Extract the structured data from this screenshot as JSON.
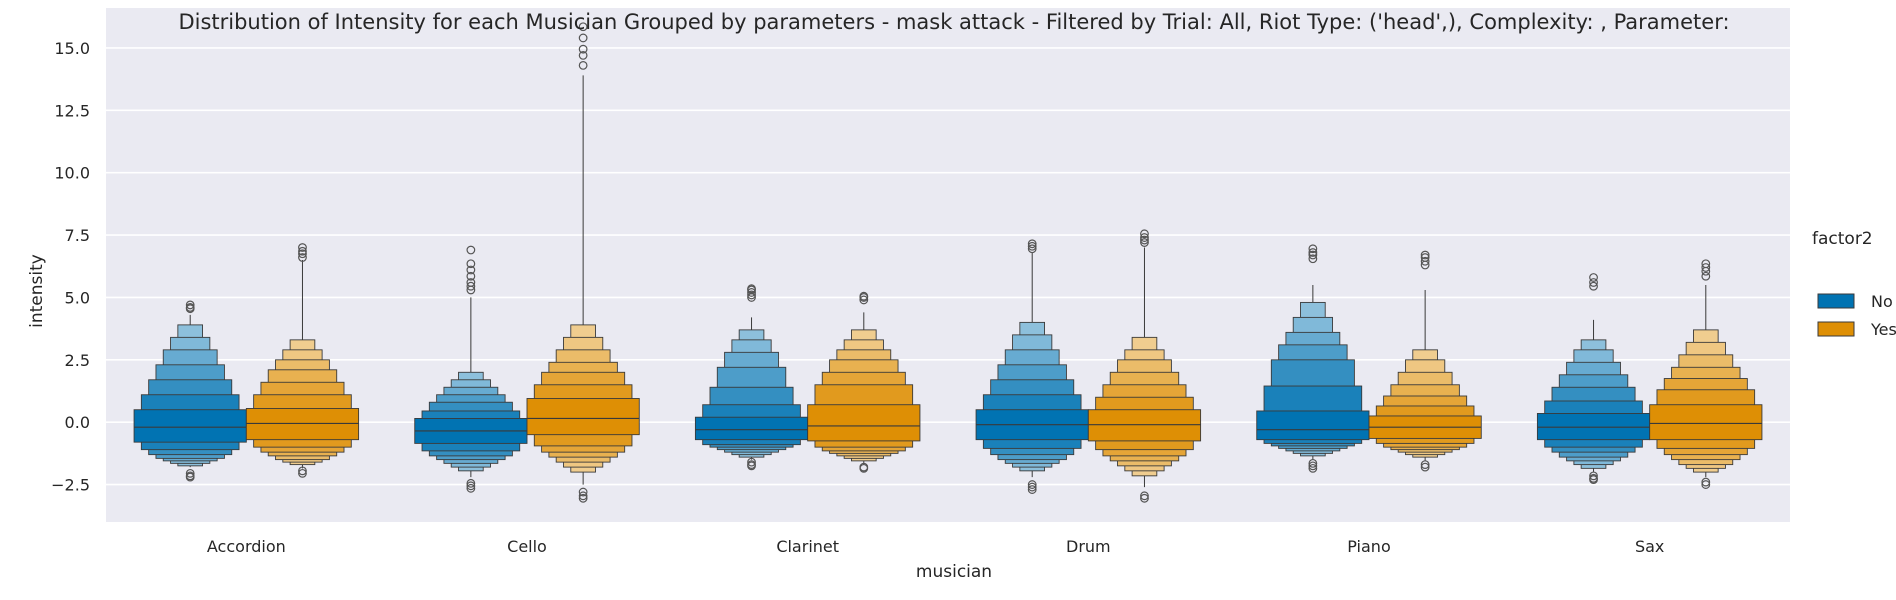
{
  "chart_data": {
    "type": "boxen",
    "title": "Distribution of Intensity for each Musician Grouped by parameters - mask attack - Filtered by Trial: All, Riot Type: ('head',), Complexity: , Parameter:",
    "xlabel": "musician",
    "ylabel": "intensity",
    "ylim": [
      -4.0,
      16.6
    ],
    "yticks": [
      -2.5,
      0.0,
      2.5,
      5.0,
      7.5,
      10.0,
      12.5,
      15.0
    ],
    "ytick_labels": [
      "−2.5",
      "0.0",
      "2.5",
      "5.0",
      "7.5",
      "10.0",
      "12.5",
      "15.0"
    ],
    "grid": true,
    "background": "#eaeaf2",
    "legend": {
      "title": "factor2",
      "placement": "right",
      "entries": [
        {
          "label": "No",
          "color": "#0173b2"
        },
        {
          "label": "Yes",
          "color": "#de8f05"
        }
      ]
    },
    "categories": [
      "Accordion",
      "Cello",
      "Clarinet",
      "Drum",
      "Piano",
      "Sax"
    ],
    "series": [
      {
        "name": "No",
        "color": "#0173b2",
        "groups": [
          {
            "median": -0.2,
            "levels": [
              [
                -0.8,
                0.5
              ],
              [
                -1.1,
                1.1
              ],
              [
                -1.3,
                1.7
              ],
              [
                -1.45,
                2.3
              ],
              [
                -1.55,
                2.9
              ],
              [
                -1.65,
                3.4
              ],
              [
                -1.75,
                3.9
              ]
            ],
            "whisker": [
              -1.8,
              4.3
            ],
            "outliers": [
              -2.05,
              -2.15,
              -2.2,
              4.55,
              4.6,
              4.7
            ]
          },
          {
            "median": -0.35,
            "levels": [
              [
                -0.85,
                0.15
              ],
              [
                -1.15,
                0.45
              ],
              [
                -1.35,
                0.8
              ],
              [
                -1.5,
                1.1
              ],
              [
                -1.65,
                1.4
              ],
              [
                -1.8,
                1.7
              ],
              [
                -1.95,
                2.0
              ]
            ],
            "whisker": [
              -2.2,
              5.0
            ],
            "outliers": [
              -2.45,
              -2.55,
              -2.65,
              5.3,
              5.45,
              5.6,
              5.85,
              6.1,
              6.35,
              6.9
            ]
          },
          {
            "median": -0.3,
            "levels": [
              [
                -0.7,
                0.2
              ],
              [
                -0.9,
                0.7
              ],
              [
                -1.0,
                1.4
              ],
              [
                -1.1,
                2.2
              ],
              [
                -1.2,
                2.8
              ],
              [
                -1.3,
                3.3
              ],
              [
                -1.4,
                3.7
              ]
            ],
            "whisker": [
              -1.5,
              4.2
            ],
            "outliers": [
              -1.6,
              -1.7,
              -1.75,
              5.0,
              5.1,
              5.2,
              5.3,
              5.35
            ]
          },
          {
            "median": -0.1,
            "levels": [
              [
                -0.7,
                0.5
              ],
              [
                -1.05,
                1.1
              ],
              [
                -1.3,
                1.7
              ],
              [
                -1.5,
                2.3
              ],
              [
                -1.65,
                2.9
              ],
              [
                -1.8,
                3.5
              ],
              [
                -1.95,
                4.0
              ]
            ],
            "whisker": [
              -2.2,
              6.8
            ],
            "outliers": [
              -2.5,
              -2.6,
              -2.7,
              6.95,
              7.05,
              7.15
            ]
          },
          {
            "median": -0.3,
            "levels": [
              [
                -0.7,
                0.45
              ],
              [
                -0.85,
                1.45
              ],
              [
                -0.95,
                2.5
              ],
              [
                -1.05,
                3.1
              ],
              [
                -1.15,
                3.6
              ],
              [
                -1.25,
                4.2
              ],
              [
                -1.35,
                4.8
              ]
            ],
            "whisker": [
              -1.5,
              5.5
            ],
            "outliers": [
              -1.65,
              -1.75,
              -1.85,
              6.55,
              6.7,
              6.8,
              6.95
            ]
          },
          {
            "median": -0.2,
            "levels": [
              [
                -0.7,
                0.35
              ],
              [
                -1.0,
                0.85
              ],
              [
                -1.2,
                1.4
              ],
              [
                -1.4,
                1.9
              ],
              [
                -1.55,
                2.4
              ],
              [
                -1.7,
                2.9
              ],
              [
                -1.85,
                3.3
              ]
            ],
            "whisker": [
              -2.0,
              4.1
            ],
            "outliers": [
              -2.15,
              -2.25,
              -2.3,
              5.45,
              5.6,
              5.8
            ]
          }
        ]
      },
      {
        "name": "Yes",
        "color": "#de8f05",
        "groups": [
          {
            "median": -0.05,
            "levels": [
              [
                -0.7,
                0.55
              ],
              [
                -1.0,
                1.1
              ],
              [
                -1.2,
                1.6
              ],
              [
                -1.35,
                2.1
              ],
              [
                -1.5,
                2.5
              ],
              [
                -1.6,
                2.9
              ],
              [
                -1.7,
                3.3
              ]
            ],
            "whisker": [
              -1.85,
              6.5
            ],
            "outliers": [
              -1.95,
              -2.05,
              6.6,
              6.75,
              6.85,
              7.0
            ]
          },
          {
            "median": 0.15,
            "levels": [
              [
                -0.5,
                0.95
              ],
              [
                -0.95,
                1.5
              ],
              [
                -1.2,
                2.0
              ],
              [
                -1.4,
                2.4
              ],
              [
                -1.6,
                2.9
              ],
              [
                -1.8,
                3.4
              ],
              [
                -2.0,
                3.9
              ]
            ],
            "whisker": [
              -2.5,
              13.9
            ],
            "outliers": [
              -2.8,
              -2.95,
              -3.05,
              14.3,
              14.7,
              14.95,
              15.4,
              15.85
            ]
          },
          {
            "median": -0.15,
            "levels": [
              [
                -0.75,
                0.7
              ],
              [
                -1.0,
                1.5
              ],
              [
                -1.15,
                2.0
              ],
              [
                -1.25,
                2.5
              ],
              [
                -1.35,
                2.9
              ],
              [
                -1.45,
                3.3
              ],
              [
                -1.55,
                3.7
              ]
            ],
            "whisker": [
              -1.7,
              4.4
            ],
            "outliers": [
              -1.8,
              -1.85,
              4.9,
              5.0,
              5.05
            ]
          },
          {
            "median": -0.1,
            "levels": [
              [
                -0.75,
                0.5
              ],
              [
                -1.1,
                1.0
              ],
              [
                -1.35,
                1.5
              ],
              [
                -1.55,
                2.0
              ],
              [
                -1.75,
                2.5
              ],
              [
                -1.95,
                2.9
              ],
              [
                -2.15,
                3.4
              ]
            ],
            "whisker": [
              -2.6,
              7.0
            ],
            "outliers": [
              -2.95,
              -3.05,
              7.2,
              7.3,
              7.4,
              7.55
            ]
          },
          {
            "median": -0.2,
            "levels": [
              [
                -0.65,
                0.25
              ],
              [
                -0.85,
                0.65
              ],
              [
                -1.0,
                1.05
              ],
              [
                -1.1,
                1.5
              ],
              [
                -1.2,
                2.0
              ],
              [
                -1.3,
                2.5
              ],
              [
                -1.4,
                2.9
              ]
            ],
            "whisker": [
              -1.55,
              5.3
            ],
            "outliers": [
              -1.7,
              -1.8,
              6.3,
              6.45,
              6.6,
              6.7
            ]
          },
          {
            "median": -0.05,
            "levels": [
              [
                -0.7,
                0.7
              ],
              [
                -1.05,
                1.3
              ],
              [
                -1.3,
                1.75
              ],
              [
                -1.5,
                2.2
              ],
              [
                -1.7,
                2.7
              ],
              [
                -1.85,
                3.2
              ],
              [
                -2.0,
                3.7
              ]
            ],
            "whisker": [
              -2.2,
              5.5
            ],
            "outliers": [
              -2.4,
              -2.5,
              5.85,
              6.05,
              6.2,
              6.35
            ]
          }
        ]
      }
    ]
  }
}
